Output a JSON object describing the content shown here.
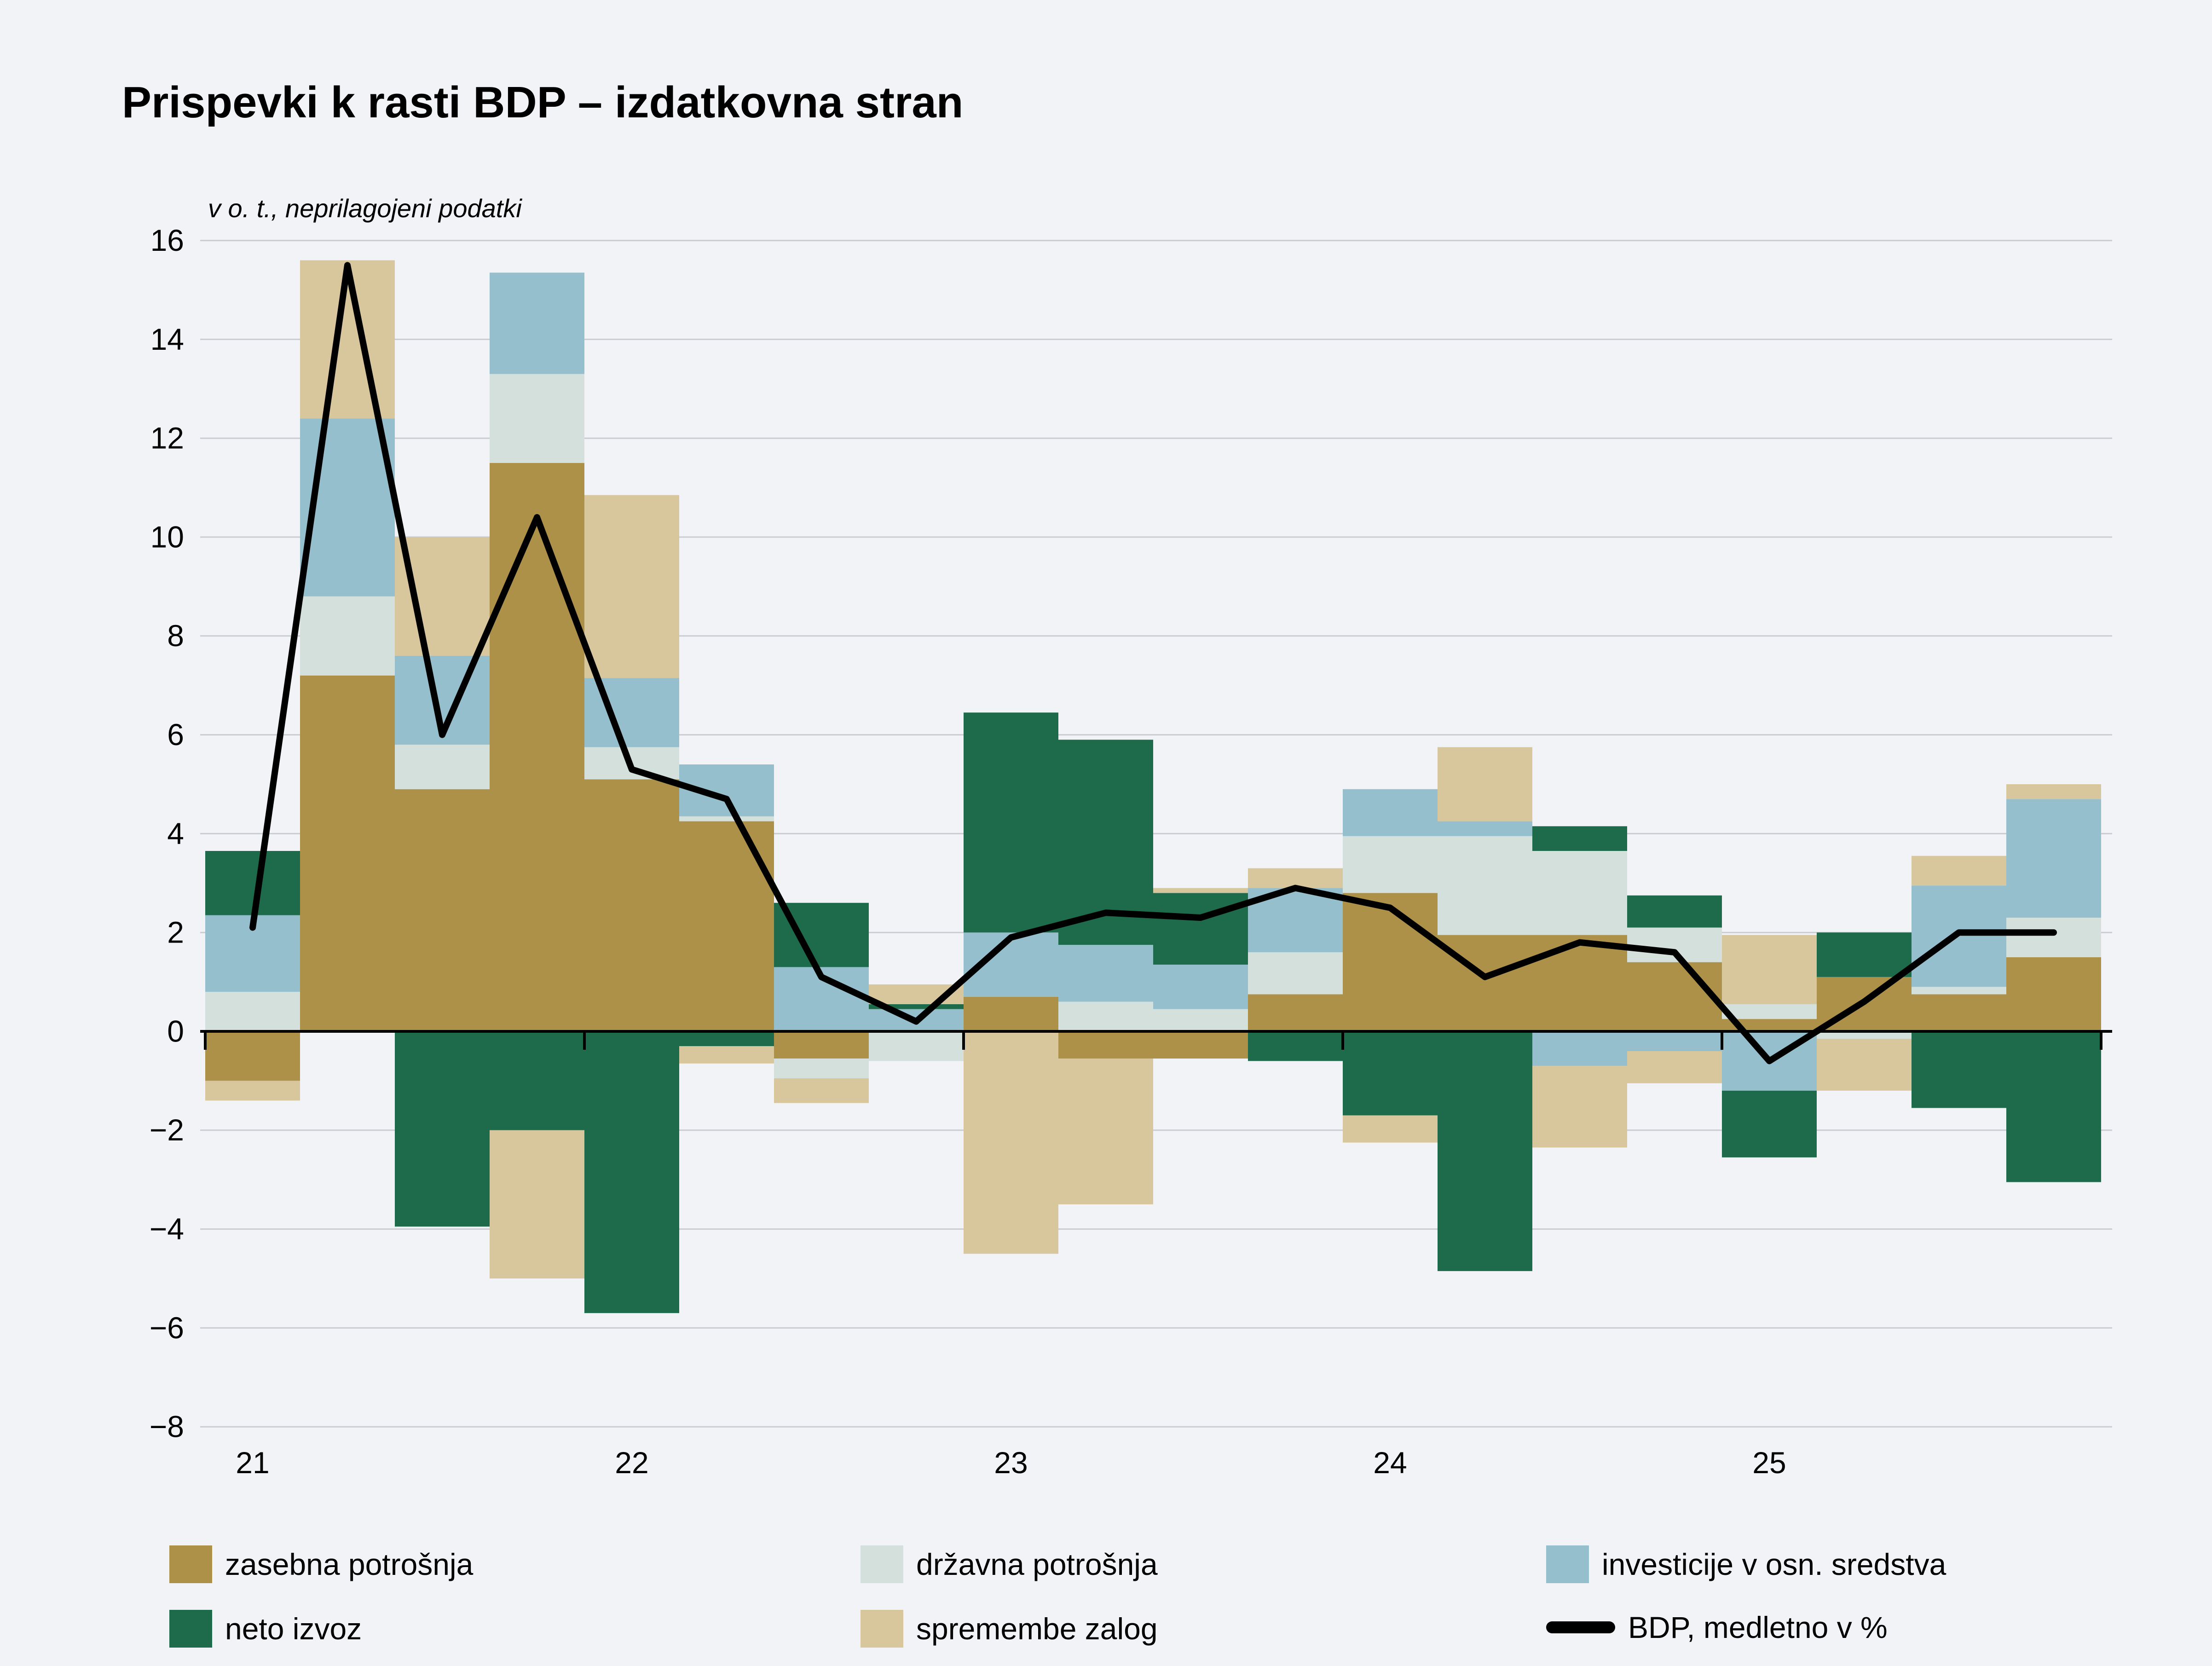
{
  "title": "Prispevki k rasti BDP – izdatkovna stran",
  "subtitle": "v o. t., neprilagojeni podatki",
  "colors": {
    "background": "#f1f3f7",
    "gridline": "#c9cdd2",
    "axis": "#000000",
    "zasebna": "#ae9148",
    "drzavna": "#d4e0db",
    "investicije": "#95bfcd",
    "neto_izvoz": "#1e6b4b",
    "zaloge": "#d8c69c",
    "bdp_line": "#000000"
  },
  "legend": {
    "items": [
      {
        "label": "zasebna potrošnja",
        "color_key": "zasebna",
        "type": "box",
        "col": 0,
        "row": 0
      },
      {
        "label": "državna potrošnja",
        "color_key": "drzavna",
        "type": "box",
        "col": 1,
        "row": 0
      },
      {
        "label": "investicije v osn. sredstva",
        "color_key": "investicije",
        "type": "box",
        "col": 2,
        "row": 0
      },
      {
        "label": "neto izvoz",
        "color_key": "neto_izvoz",
        "type": "box",
        "col": 0,
        "row": 1
      },
      {
        "label": "spremembe zalog",
        "color_key": "zaloge",
        "type": "box",
        "col": 1,
        "row": 1
      },
      {
        "label": "BDP, medletno v %",
        "color_key": "bdp_line",
        "type": "line",
        "col": 2,
        "row": 1
      }
    ]
  },
  "chart_data": {
    "type": "bar",
    "subtype": "stacked-bars-with-line",
    "title": "Prispevki k rasti BDP – izdatkovna stran",
    "subtitle": "v o. t., neprilagojeni podatki",
    "xlabel": "",
    "ylabel": "",
    "ylim": [
      -8,
      16
    ],
    "ytick_step": 2,
    "grid": "horizontal",
    "legend_position": "bottom",
    "x_year_labels": [
      "21",
      "22",
      "23",
      "24",
      "25"
    ],
    "categories": [
      "2021Q1",
      "2021Q2",
      "2021Q3",
      "2021Q4",
      "2022Q1",
      "2022Q2",
      "2022Q3",
      "2022Q4",
      "2023Q1",
      "2023Q2",
      "2023Q3",
      "2023Q4",
      "2024Q1",
      "2024Q2",
      "2024Q3",
      "2024Q4",
      "2025Q1",
      "2025Q2",
      "2025Q3",
      "2025Q4"
    ],
    "series": [
      {
        "name": "zasebna potrošnja",
        "color_key": "zasebna",
        "values": [
          -1.0,
          7.2,
          4.9,
          11.5,
          5.1,
          4.25,
          -0.55,
          0,
          0.7,
          -0.55,
          -0.55,
          0.75,
          2.8,
          1.95,
          1.95,
          1.4,
          0.25,
          1.1,
          0.75,
          1.5
        ]
      },
      {
        "name": "državna potrošnja",
        "color_key": "drzavna",
        "values": [
          0.8,
          1.6,
          0.9,
          1.8,
          0.65,
          0.1,
          -0.4,
          -0.6,
          0,
          0.6,
          0.45,
          0.85,
          1.15,
          2.0,
          1.7,
          0.7,
          0.3,
          -0.15,
          0.15,
          0.8
        ]
      },
      {
        "name": "investicije v osn. sredstva",
        "color_key": "investicije",
        "values": [
          1.55,
          3.6,
          1.8,
          2.05,
          1.4,
          1.05,
          1.3,
          0.45,
          1.3,
          1.15,
          0.9,
          1.3,
          0.95,
          0.3,
          -0.7,
          -0.4,
          -1.2,
          0,
          2.05,
          2.4
        ]
      },
      {
        "name": "neto izvoz",
        "color_key": "neto_izvoz",
        "values": [
          1.3,
          0,
          -3.95,
          -2.0,
          -5.7,
          -0.3,
          1.3,
          0.1,
          4.45,
          4.15,
          1.45,
          -0.6,
          -1.7,
          -4.85,
          0.5,
          0.65,
          -1.35,
          0.9,
          -1.55,
          -3.05
        ]
      },
      {
        "name": "spremembe zalog",
        "color_key": "zaloge",
        "values": [
          -0.4,
          3.2,
          2.4,
          -3.0,
          3.7,
          -0.35,
          -0.5,
          0.4,
          -4.5,
          -2.95,
          0.1,
          0.4,
          -0.55,
          1.5,
          -1.65,
          -0.65,
          1.4,
          -1.05,
          0.6,
          0.3
        ]
      }
    ],
    "line": {
      "name": "BDP, medletno v %",
      "color_key": "bdp_line",
      "values": [
        2.1,
        15.5,
        6.0,
        10.4,
        5.3,
        4.7,
        1.1,
        0.2,
        1.9,
        2.4,
        2.3,
        2.9,
        2.5,
        1.1,
        1.8,
        1.6,
        -0.6,
        0.6,
        2.0,
        2.0
      ]
    }
  }
}
